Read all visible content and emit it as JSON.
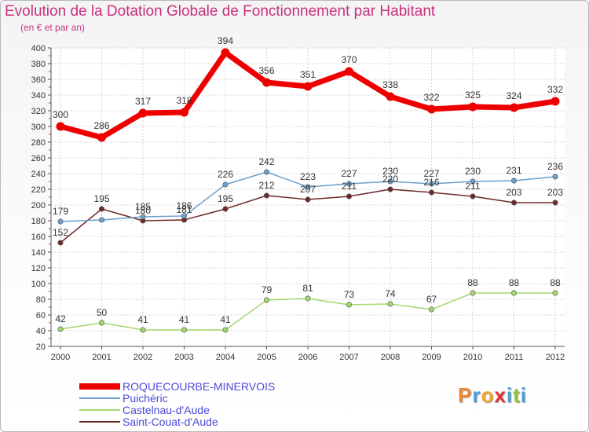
{
  "chart_data": {
    "type": "line",
    "title": "Evolution de la Dotation Globale de Fonctionnement par Habitant",
    "subtitle": "(en € et par an)",
    "xlabel": "",
    "ylabel": "",
    "x": [
      "2000",
      "2001",
      "2002",
      "2003",
      "2004",
      "2005",
      "2006",
      "2007",
      "2008",
      "2009",
      "2010",
      "2011",
      "2012"
    ],
    "ylim": [
      20,
      400
    ],
    "yticks": [
      20,
      40,
      60,
      80,
      100,
      120,
      140,
      160,
      180,
      200,
      220,
      240,
      260,
      280,
      300,
      320,
      340,
      360,
      380,
      400
    ],
    "grid": true,
    "legend_position": "bottom-left",
    "series": [
      {
        "name": "ROQUECOURBE-MINERVOIS",
        "color": "#ee0000",
        "values": [
          300,
          286,
          317,
          318,
          394,
          356,
          351,
          370,
          338,
          322,
          325,
          324,
          332
        ],
        "labels": [
          "300",
          "286",
          "317",
          "318",
          "394",
          "356",
          "351",
          "370",
          "338",
          "322",
          "325",
          "324",
          "332"
        ]
      },
      {
        "name": "Puichéric",
        "color": "#6ba0cf",
        "values": [
          179,
          181,
          185,
          186,
          226,
          242,
          223,
          227,
          230,
          227,
          230,
          231,
          236
        ],
        "labels": [
          "179",
          "",
          "185",
          "186",
          "226",
          "242",
          "223",
          "227",
          "230",
          "227",
          "230",
          "231",
          "236"
        ]
      },
      {
        "name": "Castelnau-d'Aude",
        "color": "#a4d86e",
        "values": [
          42,
          50,
          41,
          41,
          41,
          79,
          81,
          73,
          74,
          67,
          88,
          88,
          88
        ],
        "labels": [
          "42",
          "50",
          "41",
          "41",
          "41",
          "79",
          "81",
          "73",
          "74",
          "67",
          "88",
          "88",
          "88"
        ]
      },
      {
        "name": "Saint-Couat-d'Aude",
        "color": "#6e2a2a",
        "values": [
          152,
          195,
          180,
          181,
          195,
          212,
          207,
          211,
          220,
          216,
          211,
          203,
          203
        ],
        "labels": [
          "152",
          "195",
          "180",
          "181",
          "195",
          "212",
          "207",
          "211",
          "220",
          "216",
          "211",
          "203",
          "203"
        ]
      }
    ]
  },
  "logo": {
    "text": "Proxiti",
    "letter_colors": [
      "#f0872e",
      "#4aa0d8",
      "#f0a92e",
      "#e2342e",
      "#4aa0d8",
      "#8bc53f",
      "#4aa0d8"
    ]
  }
}
